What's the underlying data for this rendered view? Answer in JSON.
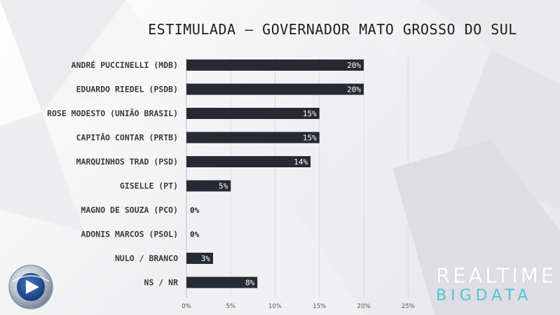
{
  "title": "ESTIMULADA – GOVERNADOR MATO GROSSO DO SUL",
  "chart_data": {
    "type": "bar",
    "orientation": "horizontal",
    "title": "ESTIMULADA – GOVERNADOR MATO GROSSO DO SUL",
    "categories": [
      "ANDRÉ PUCCINELLI (MDB)",
      "EDUARDO RIEDEL (PSDB)",
      "ROSE MODESTO (UNIÃO BRASIL)",
      "CAPITÃO CONTAR (PRTB)",
      "MARQUINHOS TRAD (PSD)",
      "GISELLE (PT)",
      "MAGNO DE SOUZA (PCO)",
      "ADONIS MARCOS (PSOL)",
      "NULO / BRANCO",
      "NS / NR"
    ],
    "values": [
      20,
      20,
      15,
      15,
      14,
      5,
      0,
      0,
      3,
      8
    ],
    "value_labels": [
      "20%",
      "20%",
      "15%",
      "15%",
      "14%",
      "5%",
      "0%",
      "0%",
      "3%",
      "8%"
    ],
    "xlim": [
      0,
      25
    ],
    "ticks": [
      "0%",
      "5%",
      "10%",
      "15%",
      "20%",
      "25%"
    ],
    "tick_values": [
      0,
      5,
      10,
      15,
      20,
      25
    ],
    "grid": true,
    "legend": "none",
    "bar_color": "#262a33"
  },
  "brand": {
    "line1": "REALTIME",
    "line2": "BIGDATA"
  }
}
